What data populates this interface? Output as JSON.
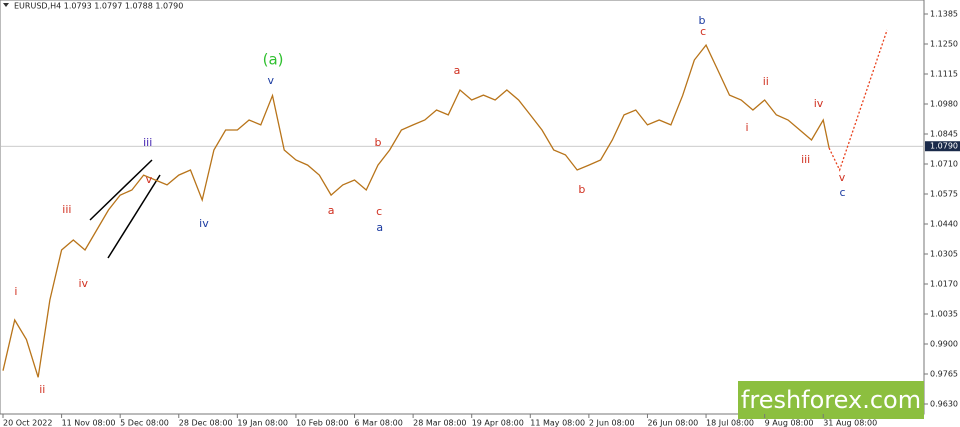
{
  "header": "EURUSD,H4  1.0793 1.0797 1.0788 1.0790",
  "watermark": "freshforex.com",
  "chart_data": {
    "type": "line",
    "xlim": [
      0,
      157.2
    ],
    "ylim": [
      0.9585,
      1.1448
    ],
    "yticks": [
      1.1385,
      {
        "value": 1.125,
        "label": "1.1250"
      },
      1.1115,
      {
        "value": 1.098,
        "label": "1.0980"
      },
      1.0845,
      {
        "value": 1.071,
        "label": "1.0710"
      },
      1.0575,
      {
        "value": 1.044,
        "label": "1.0440"
      },
      1.0305,
      {
        "value": 1.017,
        "label": "1.0170"
      },
      1.0035,
      {
        "value": 0.99,
        "label": "0.9900"
      },
      0.9765,
      {
        "value": 0.963,
        "label": "0.9630"
      }
    ],
    "xticks": [
      {
        "value": 0,
        "label": "20 Oct 2022"
      },
      {
        "value": 10,
        "label": "11 Nov 08:00"
      },
      {
        "value": 20,
        "label": "5 Dec 08:00"
      },
      {
        "value": 30,
        "label": "28 Dec 08:00"
      },
      {
        "value": 40,
        "label": "19 Jan 08:00"
      },
      {
        "value": 50,
        "label": "10 Feb 08:00"
      },
      {
        "value": 60,
        "label": "6 Mar 08:00"
      },
      {
        "value": 70,
        "label": "28 Mar 08:00"
      },
      {
        "value": 80,
        "label": "19 Apr 08:00"
      },
      {
        "value": 90,
        "label": "11 May 08:00"
      },
      {
        "value": 100,
        "label": "2 Jun 08:00"
      },
      {
        "value": 110,
        "label": "26 Jun 08:00"
      },
      {
        "value": 120,
        "label": "18 Jul 08:00"
      },
      {
        "value": 130,
        "label": "9 Aug 08:00"
      },
      {
        "value": 140,
        "label": "31 Aug 08:00"
      }
    ],
    "current_price": {
      "value": 1.079,
      "label": "1.0790"
    },
    "series": [
      {
        "color": "#b8741a",
        "style": "solid",
        "x": [
          0,
          2,
          4,
          6,
          8,
          10,
          12,
          14,
          16,
          18,
          20,
          22,
          24,
          26,
          28,
          30,
          32,
          34,
          36,
          38,
          40,
          42,
          44,
          46,
          48,
          50,
          52,
          54,
          56,
          58,
          60,
          62,
          64,
          66,
          68,
          70,
          72,
          74,
          76,
          78,
          80,
          82,
          84,
          86,
          88,
          90,
          92,
          94,
          96,
          98,
          100,
          102,
          104,
          106,
          108,
          110,
          112,
          114,
          116,
          118,
          120,
          122,
          124,
          126,
          128,
          130,
          132,
          134,
          136,
          138,
          140,
          141
        ],
        "values": [
          0.978,
          1.0008,
          0.992,
          0.975,
          1.0098,
          1.0323,
          1.0368,
          1.0323,
          1.0413,
          1.0503,
          1.057,
          1.0593,
          1.066,
          1.0638,
          1.0616,
          1.066,
          1.0683,
          1.0548,
          1.0773,
          1.0863,
          1.0863,
          1.0908,
          1.0886,
          1.1018,
          1.0773,
          1.0728,
          1.0705,
          1.066,
          1.057,
          1.0616,
          1.0638,
          1.0593,
          1.0705,
          1.0773,
          1.0863,
          1.0886,
          1.0908,
          1.0953,
          1.0931,
          1.1043,
          1.0998,
          1.102,
          1.0998,
          1.1043,
          1.0998,
          1.0931,
          1.0863,
          1.0773,
          1.0751,
          1.0683,
          1.0705,
          1.0728,
          1.0818,
          1.0931,
          1.0953,
          1.0886,
          1.0908,
          1.0886,
          1.1018,
          1.1178,
          1.1245,
          1.1133,
          1.102,
          1.0998,
          1.0953,
          1.0998,
          1.0931,
          1.0908,
          1.0863,
          1.0818,
          1.0908,
          1.0782
        ]
      },
      {
        "color": "#e8401c",
        "style": "dotted",
        "x": [
          141,
          142.8,
          150.9
        ],
        "values": [
          1.0782,
          1.0683,
          1.1313
        ]
      }
    ],
    "annotations": [
      {
        "text": "i",
        "x": 2.2,
        "y": 1.0134,
        "color": "#d03020"
      },
      {
        "text": "ii",
        "x": 6.7,
        "y": 0.9693,
        "color": "#d03020"
      },
      {
        "text": "iii",
        "x": 10.9,
        "y": 1.0503,
        "color": "#d03020"
      },
      {
        "text": "iv",
        "x": 13.7,
        "y": 1.017,
        "color": "#d03020"
      },
      {
        "text": "v",
        "x": 24.9,
        "y": 1.0638,
        "color": "#d03020"
      },
      {
        "text": "iii",
        "x": 24.7,
        "y": 1.0804,
        "color": "#4020b0"
      },
      {
        "text": "iv",
        "x": 34.3,
        "y": 1.044,
        "color": "#1a3aa0"
      },
      {
        "text": "(a)",
        "x": 46.1,
        "y": 1.1178,
        "color": "#30c030"
      },
      {
        "text": "v",
        "x": 45.7,
        "y": 1.1083,
        "color": "#1a3aa0"
      },
      {
        "text": "a",
        "x": 56,
        "y": 1.0498,
        "color": "#d03020"
      },
      {
        "text": "b",
        "x": 64,
        "y": 1.0804,
        "color": "#d03020"
      },
      {
        "text": "c",
        "x": 64.2,
        "y": 1.0494,
        "color": "#d03020"
      },
      {
        "text": "a",
        "x": 64.3,
        "y": 1.0422,
        "color": "#1a3aa0"
      },
      {
        "text": "a",
        "x": 77.5,
        "y": 1.1128,
        "color": "#d03020"
      },
      {
        "text": "b",
        "x": 98.8,
        "y": 1.0593,
        "color": "#d03020"
      },
      {
        "text": "b",
        "x": 119.3,
        "y": 1.1353,
        "color": "#1a3aa0"
      },
      {
        "text": "c",
        "x": 119.5,
        "y": 1.1304,
        "color": "#d03020"
      },
      {
        "text": "ii",
        "x": 130.2,
        "y": 1.1079,
        "color": "#d03020"
      },
      {
        "text": "i",
        "x": 127,
        "y": 1.0872,
        "color": "#d03020"
      },
      {
        "text": "iii",
        "x": 137,
        "y": 1.0728,
        "color": "#d03020"
      },
      {
        "text": "iv",
        "x": 139.2,
        "y": 1.098,
        "color": "#d03020"
      },
      {
        "text": "v",
        "x": 143.2,
        "y": 1.0647,
        "color": "#d03020"
      },
      {
        "text": "c",
        "x": 143.3,
        "y": 1.058,
        "color": "#1a3aa0"
      }
    ]
  }
}
